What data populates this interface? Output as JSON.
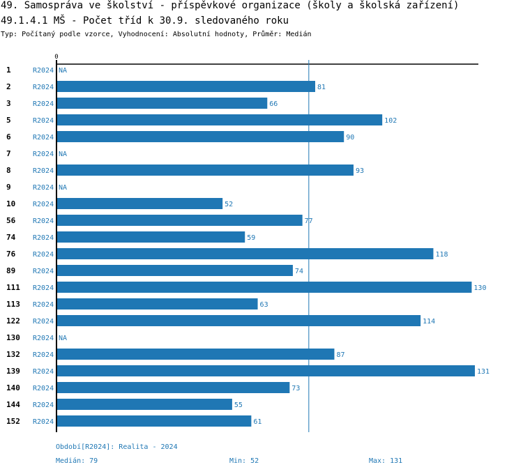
{
  "header": {
    "title": "49. Samospráva ve školství - příspěvkové organizace (školy a školská zařízení)",
    "subtitle": "49.1.4.1 MŠ - Počet tříd k 30.9. sledovaného roku",
    "info": "Typ: Počítaný podle vzorce, Vyhodnocení: Absolutní hodnoty, Průměr: Medián"
  },
  "colors": {
    "bar": "#1f77b4",
    "axis": "#000000",
    "median_line": "#1f77b4",
    "label": "#1f77b4"
  },
  "chart_data": {
    "type": "bar",
    "orientation": "horizontal",
    "x_tick_labels": [
      "0"
    ],
    "xlim": [
      0,
      131
    ],
    "na_label": "NA",
    "period_label": "R2024",
    "categories": [
      "1",
      "2",
      "3",
      "5",
      "6",
      "7",
      "8",
      "9",
      "10",
      "56",
      "74",
      "76",
      "89",
      "111",
      "113",
      "122",
      "130",
      "132",
      "139",
      "140",
      "144",
      "152"
    ],
    "values": [
      null,
      81,
      66,
      102,
      90,
      null,
      93,
      null,
      52,
      77,
      59,
      118,
      74,
      130,
      63,
      114,
      null,
      87,
      131,
      73,
      55,
      61
    ],
    "reference_line": {
      "name": "Medián",
      "value": 79
    }
  },
  "footer": {
    "period": "Období[R2024]: Realita - 2024",
    "median": "Medián: 79",
    "min": "Min: 52",
    "max": "Max: 131"
  }
}
